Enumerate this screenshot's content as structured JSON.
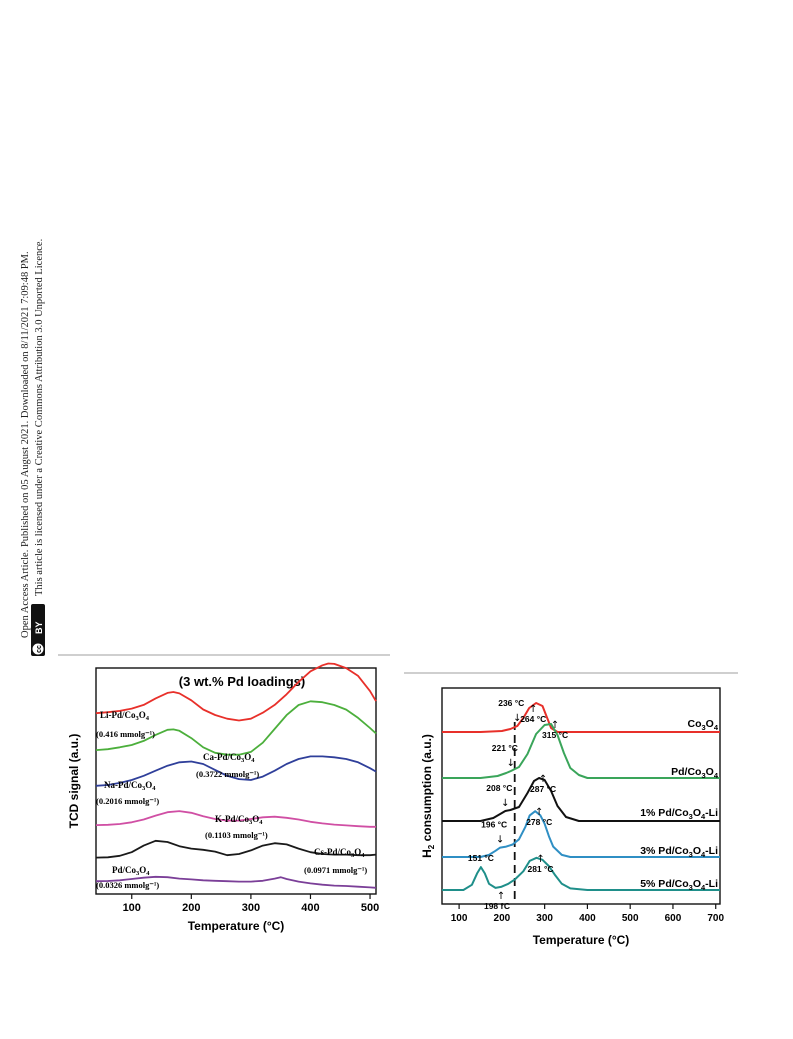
{
  "license_notice": {
    "line1": "Open Access Article. Published on 05 August 2021. Downloaded on 8/11/2021 7:09:48 PM.",
    "line2": "This article is licensed under a Creative Commons Attribution 3.0 Unported Licence.",
    "badge_cc": "cc",
    "badge_by": "BY"
  },
  "chart_data": [
    {
      "type": "line",
      "title": "(3 wt.% Pd loadings)",
      "xlabel": "Temperature (°C)",
      "ylabel": "TCD signal (a.u.)",
      "xlim": [
        40,
        510
      ],
      "xticks": [
        100,
        200,
        300,
        400,
        500
      ],
      "grid": false,
      "series": [
        {
          "name": "Li-Pd/Co3O4",
          "annotation": "(0.416 mmolg⁻¹)",
          "color": "#e8302a",
          "x": [
            40,
            60,
            80,
            100,
            120,
            140,
            160,
            170,
            180,
            200,
            220,
            240,
            260,
            280,
            300,
            320,
            340,
            360,
            380,
            400,
            420,
            430,
            440,
            460,
            480,
            500,
            510
          ],
          "y": [
            0.54,
            0.56,
            0.59,
            0.64,
            0.72,
            0.86,
            0.98,
            1.0,
            0.97,
            0.82,
            0.62,
            0.5,
            0.42,
            0.38,
            0.42,
            0.55,
            0.72,
            0.95,
            1.22,
            1.45,
            1.58,
            1.62,
            1.61,
            1.52,
            1.35,
            1.02,
            0.8
          ]
        },
        {
          "name": "Ca-Pd/Co3O4",
          "annotation": "(0.3722 mmolg⁻¹)",
          "color": "#4caf3c",
          "x": [
            40,
            60,
            80,
            100,
            120,
            140,
            160,
            170,
            180,
            200,
            220,
            240,
            260,
            280,
            300,
            320,
            340,
            360,
            380,
            400,
            420,
            440,
            460,
            480,
            500,
            510
          ],
          "y": [
            0.52,
            0.54,
            0.58,
            0.63,
            0.72,
            0.85,
            0.96,
            0.97,
            0.94,
            0.78,
            0.58,
            0.46,
            0.42,
            0.42,
            0.48,
            0.68,
            0.98,
            1.28,
            1.5,
            1.58,
            1.56,
            1.5,
            1.4,
            1.22,
            1.0,
            0.88
          ]
        },
        {
          "name": "Na-Pd/Co3O4",
          "annotation": "(0.2016 mmolg⁻¹)",
          "color": "#2f3f9a",
          "x": [
            40,
            60,
            80,
            100,
            120,
            140,
            160,
            180,
            200,
            220,
            240,
            260,
            280,
            300,
            320,
            340,
            360,
            380,
            400,
            420,
            440,
            460,
            480,
            500,
            510
          ],
          "y": [
            0.48,
            0.5,
            0.55,
            0.62,
            0.72,
            0.84,
            0.96,
            1.04,
            1.06,
            1.0,
            0.86,
            0.72,
            0.64,
            0.62,
            0.7,
            0.84,
            1.0,
            1.12,
            1.18,
            1.18,
            1.16,
            1.12,
            1.04,
            0.9,
            0.82
          ]
        },
        {
          "name": "K-Pd/Co3O4",
          "annotation": "(0.1103 mmolg⁻¹)",
          "color": "#d04fa4",
          "x": [
            40,
            60,
            80,
            100,
            120,
            140,
            160,
            180,
            200,
            220,
            240,
            260,
            280,
            300,
            320,
            340,
            360,
            380,
            400,
            420,
            440,
            460,
            480,
            500,
            510
          ],
          "y": [
            0.46,
            0.47,
            0.5,
            0.56,
            0.66,
            0.8,
            0.92,
            0.96,
            0.9,
            0.78,
            0.68,
            0.62,
            0.62,
            0.68,
            0.74,
            0.76,
            0.72,
            0.66,
            0.58,
            0.52,
            0.48,
            0.45,
            0.42,
            0.4,
            0.4
          ]
        },
        {
          "name": "Cs-Pd/Co3O4",
          "annotation": "(0.0971 mmolg⁻¹)",
          "color": "#1a1a1a",
          "x": [
            40,
            60,
            80,
            100,
            120,
            140,
            160,
            180,
            200,
            220,
            240,
            260,
            280,
            300,
            320,
            340,
            360,
            380,
            400,
            420,
            440,
            460,
            480,
            500,
            510
          ],
          "y": [
            0.28,
            0.29,
            0.34,
            0.46,
            0.68,
            0.84,
            0.8,
            0.66,
            0.58,
            0.54,
            0.48,
            0.36,
            0.4,
            0.52,
            0.68,
            0.76,
            0.72,
            0.58,
            0.46,
            0.4,
            0.38,
            0.38,
            0.36,
            0.36,
            0.38
          ]
        },
        {
          "name": "Pd/Co3O4",
          "annotation": "(0.0326 mmolg⁻¹)",
          "color": "#7b3f98",
          "x": [
            40,
            60,
            80,
            100,
            120,
            140,
            160,
            180,
            200,
            220,
            240,
            260,
            280,
            300,
            320,
            340,
            350,
            360,
            380,
            400,
            420,
            440,
            460,
            480,
            500,
            510
          ],
          "y": [
            0.4,
            0.41,
            0.44,
            0.5,
            0.56,
            0.6,
            0.58,
            0.52,
            0.48,
            0.44,
            0.42,
            0.4,
            0.38,
            0.38,
            0.42,
            0.52,
            0.58,
            0.5,
            0.38,
            0.3,
            0.24,
            0.2,
            0.18,
            0.15,
            0.12,
            0.1
          ]
        }
      ]
    },
    {
      "type": "line",
      "xlabel": "Temperature (°C)",
      "ylabel": "H2 consumption (a.u.)",
      "xlim": [
        60,
        710
      ],
      "xticks": [
        100,
        200,
        300,
        400,
        500,
        600,
        700
      ],
      "grid": false,
      "reference_line_x": 230,
      "series": [
        {
          "name": "Co3O4",
          "color": "#e8302a",
          "x": [
            60,
            150,
            200,
            220,
            236,
            250,
            264,
            280,
            295,
            305,
            315,
            330,
            400,
            710
          ],
          "y": [
            0,
            0,
            0.02,
            0.06,
            0.12,
            0.28,
            0.48,
            0.58,
            0.52,
            0.3,
            0.08,
            0,
            0,
            0
          ],
          "annotations": [
            {
              "x": 236,
              "label": "236 °C"
            },
            {
              "x": 264,
              "label": "264 °C"
            }
          ]
        },
        {
          "name": "Pd/Co3O4",
          "color": "#3aa55a",
          "x": [
            60,
            150,
            190,
            210,
            221,
            240,
            260,
            280,
            300,
            315,
            330,
            345,
            360,
            380,
            400,
            710
          ],
          "y": [
            0,
            0,
            0.04,
            0.1,
            0.14,
            0.22,
            0.48,
            0.88,
            1.06,
            1.08,
            0.86,
            0.5,
            0.2,
            0.06,
            0,
            0
          ],
          "annotations": [
            {
              "x": 221,
              "label": "221 °C"
            },
            {
              "x": 315,
              "label": "315 °C"
            }
          ]
        },
        {
          "name": "1% Pd/Co3O4-Li",
          "color": "#111111",
          "x": [
            60,
            150,
            180,
            200,
            208,
            220,
            240,
            260,
            275,
            287,
            300,
            315,
            330,
            350,
            380,
            710
          ],
          "y": [
            0,
            0,
            0.06,
            0.16,
            0.2,
            0.22,
            0.28,
            0.56,
            0.8,
            0.86,
            0.82,
            0.6,
            0.3,
            0.08,
            0,
            0
          ],
          "annotations": [
            {
              "x": 208,
              "label": "208 °C"
            },
            {
              "x": 287,
              "label": "287 °C"
            }
          ]
        },
        {
          "name": "3% Pd/Co3O4-Li",
          "color": "#2f8fc4",
          "x": [
            60,
            150,
            170,
            185,
            196,
            210,
            225,
            240,
            255,
            265,
            278,
            290,
            300,
            310,
            320,
            340,
            360,
            710
          ],
          "y": [
            0,
            0,
            0.04,
            0.12,
            0.18,
            0.2,
            0.24,
            0.34,
            0.58,
            0.8,
            0.88,
            0.8,
            0.64,
            0.4,
            0.2,
            0.04,
            0,
            0
          ],
          "annotations": [
            {
              "x": 196,
              "label": "196 °C"
            },
            {
              "x": 278,
              "label": "278 °C"
            }
          ]
        },
        {
          "name": "5% Pd/Co3O4-Li",
          "color": "#1f8f8a",
          "x": [
            60,
            110,
            130,
            142,
            151,
            160,
            170,
            185,
            198,
            215,
            230,
            250,
            265,
            281,
            295,
            310,
            325,
            340,
            360,
            400,
            710
          ],
          "y": [
            0,
            0,
            0.1,
            0.32,
            0.44,
            0.32,
            0.12,
            0.04,
            0.06,
            0.12,
            0.2,
            0.36,
            0.56,
            0.62,
            0.58,
            0.46,
            0.28,
            0.12,
            0.03,
            0,
            0
          ],
          "annotations": [
            {
              "x": 151,
              "label": "151 °C"
            },
            {
              "x": 198,
              "label": "198 °C"
            },
            {
              "x": 281,
              "label": "281 °C"
            }
          ]
        }
      ]
    }
  ]
}
